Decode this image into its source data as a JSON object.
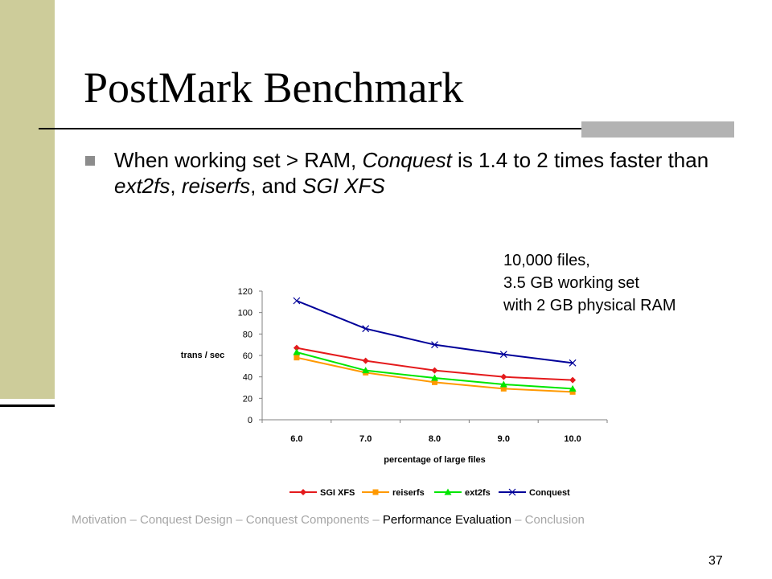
{
  "slide": {
    "title": "PostMark Benchmark",
    "bullet": {
      "parts": [
        "When working set > RAM, ",
        "Conquest",
        " is 1.4 to 2 times faster than ",
        "ext2fs",
        ", ",
        "reiserfs",
        ", and ",
        "SGI XFS"
      ]
    },
    "note_lines": [
      "10,000 files,",
      "3.5 GB working set",
      "with 2 GB physical RAM"
    ],
    "footer": {
      "items": [
        "Motivation – Conquest Design – Conquest Components – ",
        "Performance Evaluation",
        " – Conclusion"
      ]
    },
    "page_number": "37",
    "colors": {
      "sidebar": "#cdcc9a",
      "accent_bar": "#b3b3b3",
      "footer_text": "#a6a6a6"
    }
  },
  "chart_data": {
    "type": "line",
    "categories": [
      "6.0",
      "7.0",
      "8.0",
      "9.0",
      "10.0"
    ],
    "xlabel": "percentage of large files",
    "ylabel": "trans / sec",
    "ylim": [
      0,
      120
    ],
    "yticks": [
      0,
      20,
      40,
      60,
      80,
      100,
      120
    ],
    "grid": false,
    "legend_position": "bottom",
    "series": [
      {
        "name": "SGI XFS",
        "color": "#e41a1c",
        "marker": "diamond",
        "values": [
          67,
          55,
          46,
          40,
          37
        ]
      },
      {
        "name": "reiserfs",
        "color": "#ff9900",
        "marker": "square",
        "values": [
          58,
          44,
          35,
          29,
          26
        ]
      },
      {
        "name": "ext2fs",
        "color": "#00e600",
        "marker": "triangle",
        "values": [
          63,
          46,
          39,
          33,
          29
        ]
      },
      {
        "name": "Conquest",
        "color": "#000099",
        "marker": "x",
        "values": [
          111,
          85,
          70,
          61,
          53
        ]
      }
    ]
  }
}
